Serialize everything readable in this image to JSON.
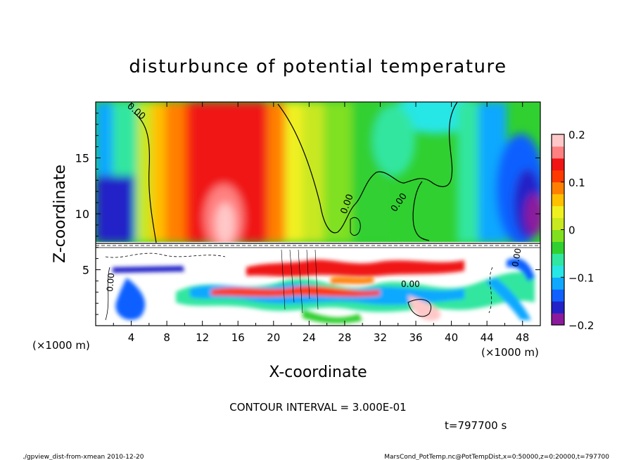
{
  "chart_data": {
    "type": "heatmap",
    "title": "disturbunce of potential temperature",
    "xlabel": "X-coordinate",
    "ylabel": "Z-coordinate",
    "x_unit_left": "(×1000 m)",
    "x_unit_right": "(×1000 m)",
    "xlim": [
      0,
      50
    ],
    "ylim": [
      0,
      20
    ],
    "x_ticks": [
      4,
      8,
      12,
      16,
      20,
      24,
      28,
      32,
      36,
      40,
      44,
      48
    ],
    "x_tick_labels": [
      "4",
      "8",
      "12",
      "16",
      "20",
      "24",
      "28",
      "32",
      "36",
      "40",
      "44",
      "48"
    ],
    "y_ticks": [
      5,
      10,
      15
    ],
    "y_tick_labels": [
      "5",
      "10",
      "15"
    ],
    "colorbar": {
      "range": [
        -0.2,
        0.2
      ],
      "ticks": [
        0.2,
        0.1,
        0,
        -0.1,
        -0.2
      ],
      "tick_labels": [
        "0.2",
        "0.1",
        "0",
        "−0.1",
        "−0.2"
      ],
      "colors": [
        "#8c1a9c",
        "#2222c8",
        "#1060ff",
        "#10a8ff",
        "#28e6e6",
        "#30e6a0",
        "#30d030",
        "#80e020",
        "#c8e820",
        "#f0f020",
        "#ffc000",
        "#ff8000",
        "#ff3a00",
        "#f01414",
        "#ff8080",
        "#ffc8c8"
      ]
    },
    "contour_labels": [
      "0.00",
      "0.00",
      "0.00",
      "0.00",
      "0.00",
      "0.00"
    ],
    "contour_interval": "CONTOUR INTERVAL = 3.000E-01",
    "time_label": "t=797700 s",
    "footer_left": "./gpview_dist-from-xmean  2010-12-20",
    "footer_right": "MarsCond_PotTemp.nc@PotTempDist,x=0:50000,z=0:20000,t=797700"
  }
}
